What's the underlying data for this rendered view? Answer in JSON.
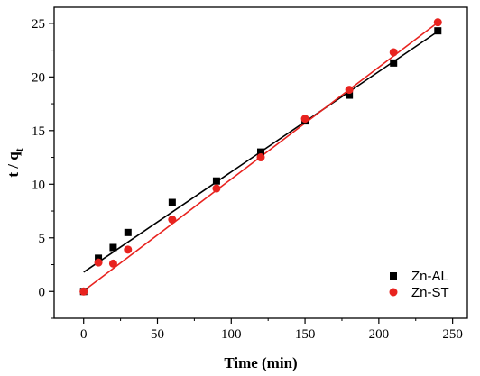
{
  "chart_data": {
    "type": "scatter",
    "xlabel": "Time (min)",
    "ylabel": {
      "main": "t / q",
      "sub": "t"
    },
    "xlim": [
      -20,
      260
    ],
    "ylim": [
      -2.5,
      26.5
    ],
    "xticks": [
      0,
      50,
      100,
      150,
      200,
      250
    ],
    "yticks": [
      0,
      5,
      10,
      15,
      20,
      25
    ],
    "grid": false,
    "legend": "bottom-right",
    "series": [
      {
        "name": "Zn-AL",
        "marker": "square",
        "color": "#000000",
        "x": [
          0,
          10,
          20,
          30,
          60,
          90,
          120,
          150,
          180,
          210,
          240
        ],
        "y": [
          0.0,
          3.1,
          4.1,
          5.5,
          8.3,
          10.3,
          13.0,
          15.9,
          18.3,
          21.3,
          24.3
        ],
        "fit": {
          "slope": 0.0935,
          "intercept": 1.8
        }
      },
      {
        "name": "Zn-ST",
        "marker": "circle",
        "color": "#e8231f",
        "x": [
          0,
          10,
          20,
          30,
          60,
          90,
          120,
          150,
          180,
          210,
          240
        ],
        "y": [
          0.0,
          2.7,
          2.6,
          3.9,
          6.7,
          9.6,
          12.5,
          16.1,
          18.8,
          22.3,
          25.1
        ],
        "fit": {
          "slope": 0.1043,
          "intercept": 0.05
        }
      }
    ]
  }
}
